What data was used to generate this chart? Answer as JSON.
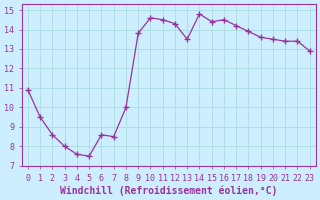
{
  "x": [
    0,
    1,
    2,
    3,
    4,
    5,
    6,
    7,
    8,
    9,
    10,
    11,
    12,
    13,
    14,
    15,
    16,
    17,
    18,
    19,
    20,
    21,
    22,
    23
  ],
  "y": [
    10.9,
    9.5,
    8.6,
    8.0,
    7.6,
    7.5,
    8.6,
    8.5,
    10.0,
    13.8,
    14.6,
    14.5,
    14.3,
    13.5,
    14.8,
    14.4,
    14.5,
    14.2,
    13.9,
    13.6,
    13.5,
    13.4,
    13.4,
    12.9
  ],
  "line_color": "#993399",
  "marker": "+",
  "marker_size": 4,
  "bg_color": "#cceeff",
  "grid_color": "#aadddd",
  "plot_bg": "#cceeff",
  "axis_label_color": "#993399",
  "tick_color": "#993399",
  "xlabel": "Windchill (Refroidissement éolien,°C)",
  "xlabel_fontsize": 7,
  "ylabel_ticks": [
    7,
    8,
    9,
    10,
    11,
    12,
    13,
    14,
    15
  ],
  "xlim": [
    -0.5,
    23.5
  ],
  "ylim": [
    7,
    15.3
  ],
  "xtick_labels": [
    "0",
    "1",
    "2",
    "3",
    "4",
    "5",
    "6",
    "7",
    "8",
    "9",
    "10",
    "11",
    "12",
    "13",
    "14",
    "15",
    "16",
    "17",
    "18",
    "19",
    "20",
    "21",
    "22",
    "23"
  ],
  "tick_fontsize": 6
}
